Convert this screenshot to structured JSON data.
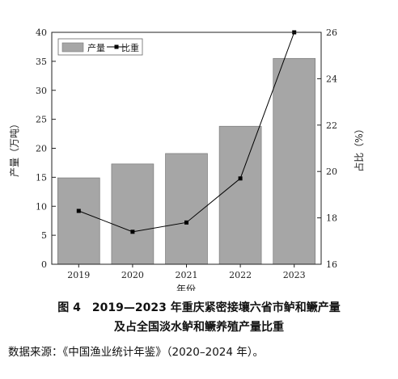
{
  "chart_data": {
    "type": "bar+line",
    "categories": [
      "2019",
      "2020",
      "2021",
      "2022",
      "2023"
    ],
    "xlabel": "年份",
    "ylabel_left": "产量（万吨）",
    "ylabel_right": "占比（%）",
    "ylim_left": [
      0,
      40
    ],
    "ylim_right": [
      16,
      26
    ],
    "yticks_left": [
      "0",
      "5",
      "10",
      "15",
      "20",
      "25",
      "30",
      "35",
      "40"
    ],
    "yticks_right": [
      "16",
      "18",
      "20",
      "22",
      "24",
      "26"
    ],
    "legend_position": "top-left",
    "series": [
      {
        "name": "产量",
        "type": "bar",
        "axis": "left",
        "color": "#a6a6a6",
        "values": [
          14.9,
          17.3,
          19.1,
          23.8,
          35.5
        ]
      },
      {
        "name": "比重",
        "type": "line",
        "axis": "right",
        "color": "#000000",
        "values": [
          18.3,
          17.4,
          17.8,
          19.7,
          26.0
        ]
      }
    ]
  },
  "caption": {
    "line1": "图 4　2019—2023 年重庆紧密接壤六省市鲈和鳜产量",
    "line2": "及占全国淡水鲈和鳜养殖产量比重"
  },
  "source": "数据来源：《中国渔业统计年鉴》（2020–2024 年）。"
}
